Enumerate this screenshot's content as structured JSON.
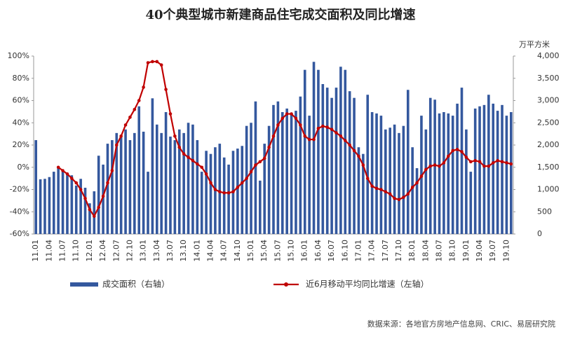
{
  "chart_data": {
    "type": "bar",
    "title": "40个典型城市新建商品住宅成交面积及同比增速",
    "y2label": "万平方米",
    "source": "数据来源：各地官方房地产信息网、CRIC、易居研究院",
    "categories": [
      "11.01",
      null,
      null,
      "11.04",
      null,
      null,
      "11.07",
      null,
      null,
      "11.10",
      null,
      null,
      "12.01",
      null,
      null,
      "12.04",
      null,
      null,
      "12.07",
      null,
      null,
      "12.10",
      null,
      null,
      "13.01",
      null,
      null,
      "13.04",
      null,
      null,
      "13.07",
      null,
      null,
      "13.10",
      null,
      null,
      "14.01",
      null,
      null,
      "14.04",
      null,
      null,
      "14.07",
      null,
      null,
      "14.10",
      null,
      null,
      "15.01",
      null,
      null,
      "15.04",
      null,
      null,
      "15.07",
      null,
      null,
      "15.10",
      null,
      null,
      "16.01",
      null,
      null,
      "16.04",
      null,
      null,
      "16.07",
      null,
      null,
      "16.10",
      null,
      null,
      "17.01",
      null,
      null,
      "17.04",
      null,
      null,
      "17.07",
      null,
      null,
      "17.10",
      null,
      null,
      "18.01",
      null,
      null,
      "18.04",
      null,
      null,
      "18.07",
      null,
      null,
      "18.10",
      null,
      null,
      "19.01",
      null,
      null,
      "19.04",
      null,
      null,
      "19.07",
      null,
      null,
      "19.10",
      null
    ],
    "series": [
      {
        "name": "成交面积（右轴）",
        "type": "bar",
        "axis": "y2",
        "color": "#34589e",
        "values": [
          2110,
          1230,
          1240,
          1280,
          1400,
          1480,
          1400,
          1320,
          1320,
          1090,
          1240,
          1040,
          690,
          960,
          1760,
          1560,
          2030,
          2110,
          2270,
          2190,
          2350,
          2110,
          2270,
          2870,
          2300,
          1400,
          3050,
          2460,
          2270,
          2740,
          2190,
          2110,
          2350,
          2270,
          2500,
          2460,
          2110,
          1400,
          1870,
          1800,
          1950,
          2030,
          1720,
          1560,
          1870,
          1920,
          1980,
          2430,
          2500,
          2980,
          1200,
          2030,
          2430,
          2900,
          2980,
          2740,
          2820,
          2710,
          2770,
          3090,
          3690,
          2660,
          3870,
          3690,
          3370,
          3290,
          3060,
          3290,
          3760,
          3690,
          3210,
          3060,
          1950,
          1800,
          3130,
          2740,
          2710,
          2660,
          2350,
          2390,
          2460,
          2270,
          2430,
          3240,
          1950,
          1480,
          2660,
          2350,
          3060,
          3020,
          2710,
          2740,
          2710,
          2660,
          2930,
          3290,
          2350,
          1400,
          2820,
          2870,
          2900,
          3130,
          2930,
          2770,
          2900,
          2660,
          2740
        ]
      },
      {
        "name": "近6月移动平均同比增速（左轴）",
        "type": "line",
        "color": "#c00000",
        "values": [
          null,
          null,
          null,
          null,
          null,
          0,
          -3,
          -6,
          -10,
          -14,
          -20,
          -28,
          -38,
          -44,
          -36,
          -26,
          -14,
          -3,
          20,
          28,
          38,
          45,
          52,
          60,
          72,
          94,
          95,
          95,
          92,
          70,
          48,
          28,
          18,
          12,
          9,
          6,
          3,
          0,
          -6,
          -14,
          -20,
          -22,
          -23,
          -23,
          -22,
          -18,
          -14,
          -10,
          -4,
          2,
          5,
          8,
          18,
          28,
          38,
          44,
          48,
          48,
          44,
          38,
          28,
          25,
          25,
          35,
          37,
          36,
          34,
          31,
          28,
          24,
          20,
          15,
          10,
          2,
          -10,
          -17,
          -19,
          -20,
          -22,
          -24,
          -28,
          -29,
          -27,
          -24,
          -18,
          -14,
          -8,
          -2,
          1,
          2,
          1,
          4,
          10,
          15,
          16,
          14,
          9,
          5,
          6,
          5,
          1,
          1,
          4,
          6,
          5,
          4,
          3
        ]
      }
    ],
    "ylim": [
      -60,
      100
    ],
    "yticks": [
      {
        "value": -60,
        "label": "-60%"
      },
      {
        "value": -40,
        "label": "-40%"
      },
      {
        "value": -20,
        "label": "-20%"
      },
      {
        "value": 0,
        "label": "0%"
      },
      {
        "value": 20,
        "label": "20%"
      },
      {
        "value": 40,
        "label": "40%"
      },
      {
        "value": 60,
        "label": "60%"
      },
      {
        "value": 80,
        "label": "80%"
      },
      {
        "value": 100,
        "label": "100%"
      }
    ],
    "y2lim": [
      0,
      4000
    ],
    "y2ticks": [
      0,
      500,
      {
        "value": 1000,
        "label": "1,000"
      },
      {
        "value": 1500,
        "label": "1,500"
      },
      {
        "value": 2000,
        "label": "2,000"
      },
      {
        "value": 2500,
        "label": "2,500"
      },
      {
        "value": 3000,
        "label": "3,000"
      },
      {
        "value": 3500,
        "label": "3,500"
      },
      {
        "value": 4000,
        "label": "4,000"
      }
    ],
    "grid": false
  }
}
